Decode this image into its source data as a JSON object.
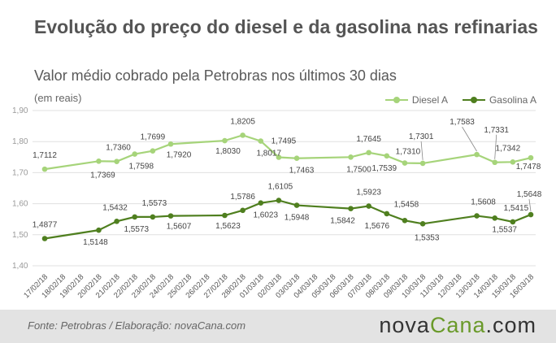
{
  "header": {
    "title": "Evolução do preço do diesel e da gasolina nas refinarias",
    "subtitle": "Valor médio cobrado pela Petrobras nos últimos 30 dias",
    "unit": "(em reais)"
  },
  "footer": {
    "source": "Fonte:  Petrobras  / Elaboração:  novaCana.com",
    "logo_main": "nova",
    "logo_accent": "Cana",
    "logo_tail": ".com"
  },
  "colors": {
    "diesel": "#a6d47a",
    "gasolina": "#4f7f1f",
    "grid": "#e0e0e0",
    "axis_text": "#9a9a9a",
    "label_text": "#444444"
  },
  "chart_data": {
    "type": "line",
    "title": "Evolução do preço do diesel e da gasolina nas refinarias",
    "subtitle": "Valor médio cobrado pela Petrobras nos últimos 30 dias",
    "ylabel": "(em reais)",
    "ylim": [
      1.4,
      1.9
    ],
    "yticks": [
      "1,40",
      "1,50",
      "1,60",
      "1,70",
      "1,80",
      "1,90"
    ],
    "grid": true,
    "legend_position": "top-right",
    "categories": [
      "17/02/18",
      "18/02/18",
      "19/02/18",
      "20/02/18",
      "21/02/18",
      "22/02/18",
      "23/02/18",
      "24/02/18",
      "25/02/18",
      "26/02/18",
      "27/02/18",
      "28/02/18",
      "01/03/18",
      "02/03/18",
      "03/03/18",
      "04/03/18",
      "05/03/18",
      "06/03/18",
      "07/03/18",
      "08/03/18",
      "09/03/18",
      "10/03/18",
      "11/03/18",
      "12/03/18",
      "13/03/18",
      "14/03/18",
      "15/03/18",
      "16/03/18"
    ],
    "series": [
      {
        "name": "Diesel A",
        "points": [
          [
            0,
            1.7112
          ],
          [
            3,
            1.7369
          ],
          [
            4,
            1.736
          ],
          [
            5,
            1.7598
          ],
          [
            6,
            1.7699
          ],
          [
            7,
            1.792
          ],
          [
            10,
            1.803
          ],
          [
            11,
            1.8205
          ],
          [
            12,
            1.8017
          ],
          [
            13,
            1.7495
          ],
          [
            14,
            1.7463
          ],
          [
            17,
            1.75
          ],
          [
            18,
            1.7645
          ],
          [
            19,
            1.7539
          ],
          [
            20,
            1.731
          ],
          [
            21,
            1.7301
          ],
          [
            24,
            1.7583
          ],
          [
            25,
            1.7331
          ],
          [
            26,
            1.7342
          ],
          [
            27,
            1.7478
          ]
        ],
        "labels": [
          "1,7112",
          "1,7369",
          "1,7360",
          "1,7598",
          "1,7699",
          "1,7920",
          "1,8030",
          "1,8205",
          "1,8017",
          "1,7495",
          "1,7463",
          "1,7500",
          "1,7645",
          "1,7539",
          "1,7310",
          "1,7301",
          "1,7583",
          "1,7331",
          "1,7342",
          "1,7478"
        ]
      },
      {
        "name": "Gasolina A",
        "points": [
          [
            0,
            1.4877
          ],
          [
            3,
            1.5148
          ],
          [
            4,
            1.5432
          ],
          [
            5,
            1.5573
          ],
          [
            6,
            1.5573
          ],
          [
            7,
            1.5607
          ],
          [
            10,
            1.5623
          ],
          [
            11,
            1.5786
          ],
          [
            12,
            1.6023
          ],
          [
            13,
            1.6105
          ],
          [
            14,
            1.5948
          ],
          [
            17,
            1.5842
          ],
          [
            18,
            1.5923
          ],
          [
            19,
            1.5676
          ],
          [
            20,
            1.5458
          ],
          [
            21,
            1.5353
          ],
          [
            24,
            1.5608
          ],
          [
            25,
            1.5537
          ],
          [
            26,
            1.5415
          ],
          [
            27,
            1.5648
          ]
        ],
        "labels": [
          "1,4877",
          "1,5148",
          "1,5432",
          "1,5573",
          "1,5573",
          "1,5607",
          "1,5623",
          "1,5786",
          "1,6023",
          "1,6105",
          "1,5948",
          "1,5842",
          "1,5923",
          "1,5676",
          "1,5458",
          "1,5353",
          "1,5608",
          "1,5537",
          "1,5415",
          "1,5648"
        ]
      }
    ]
  }
}
